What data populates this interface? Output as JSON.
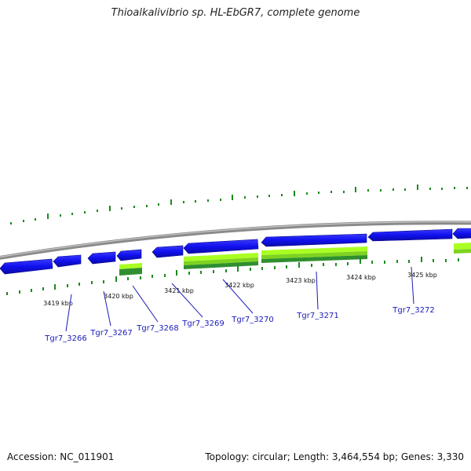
{
  "title": "Thioalkalivibrio sp. HL-EbGR7, complete genome",
  "footer": {
    "accession": "Accession: NC_011901",
    "summary": "Topology: circular; Length: 3,464,554 bp; Genes: 3,330"
  },
  "colors": {
    "backbone": "#8a8a8a",
    "cds": "#1010ee",
    "feature_light": "#aaff22",
    "feature_dark": "#2f8f2f",
    "ticks": "#1e8a1e",
    "label_link": "#1a1ab8"
  },
  "scale_ticks": [
    "3419 kbp",
    "3420 kbp",
    "3421 kbp",
    "3422 kbp",
    "3423 kbp",
    "3424 kbp",
    "3425 kbp"
  ],
  "gene_labels": [
    "Tgr7_3266",
    "Tgr7_3267",
    "Tgr7_3268",
    "Tgr7_3269",
    "Tgr7_3270",
    "Tgr7_3271",
    "Tgr7_3272"
  ]
}
